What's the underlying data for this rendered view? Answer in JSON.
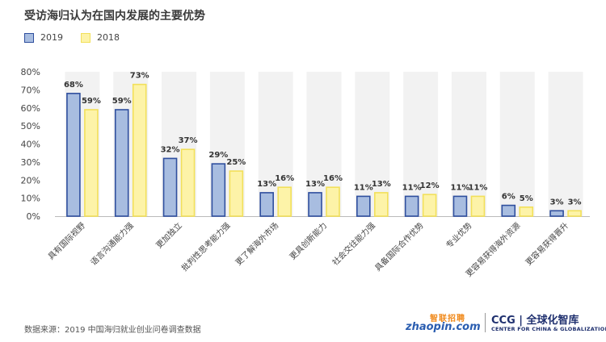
{
  "title": "受访海归认为在国内发展的主要优势",
  "legend": [
    {
      "label": "2019",
      "color": "#a8bde0",
      "border": "#2f4f9e"
    },
    {
      "label": "2018",
      "color": "#fdf3a8",
      "border": "#f2e05a"
    }
  ],
  "source": "数据来源：2019 中国海归就业创业问卷调查数据",
  "logos": {
    "zhaopin_cn": "智联招聘",
    "zhaopin_en": "zhaopin.com",
    "ccg_top": "CCG | 全球化智库",
    "ccg_sub": "CENTER FOR CHINA & GLOBALIZATION"
  },
  "chart_data": {
    "type": "bar",
    "categories": [
      "具有国际视野",
      "语言沟通能力强",
      "更加独立",
      "批判性思考能力强",
      "更了解海外市场",
      "更具创新能力",
      "社会交往能力强",
      "具备国际合作优势",
      "专业优势",
      "更容易获得海外资源",
      "更容易获得晋升"
    ],
    "series": [
      {
        "name": "2019",
        "values": [
          68,
          59,
          32,
          29,
          13,
          13,
          11,
          11,
          11,
          6,
          3
        ],
        "color": "#a8bde0",
        "border": "#2f4f9e"
      },
      {
        "name": "2018",
        "values": [
          59,
          73,
          37,
          25,
          16,
          16,
          13,
          12,
          11,
          5,
          3
        ],
        "color": "#fdf3a8",
        "border": "#f2e05a"
      }
    ],
    "data_labels": [
      [
        "68%",
        "59%",
        "32%",
        "29%",
        "13%",
        "13%",
        "11%",
        "11%",
        "11%",
        "6%",
        "3%"
      ],
      [
        "59%",
        "73%",
        "37%",
        "25%",
        "16%",
        "16%",
        "13%",
        "12%",
        "11%",
        "5%",
        "3%"
      ]
    ],
    "yticks": [
      "0%",
      "10%",
      "20%",
      "30%",
      "40%",
      "50%",
      "60%",
      "70%",
      "80%"
    ],
    "ylim": [
      0,
      80
    ],
    "grid": false,
    "legend_position": "top-left"
  }
}
